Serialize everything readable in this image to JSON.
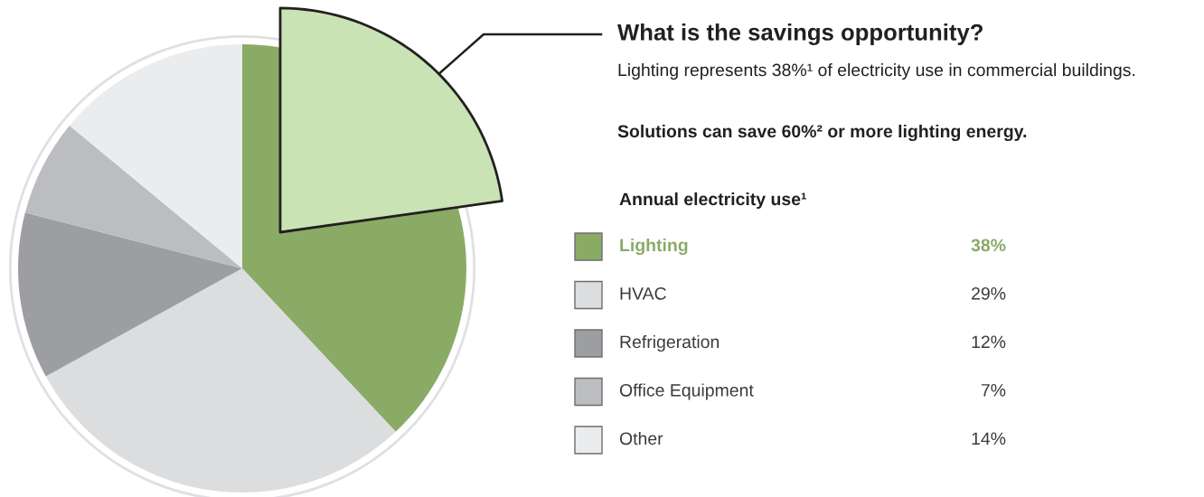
{
  "chart_data": {
    "type": "pie",
    "title": "What is the savings opportunity?",
    "subtitle": "Lighting represents 38%¹ of electricity use in commercial buildings.",
    "annotations": [
      "Solutions can save 60%² or more lighting energy."
    ],
    "legend_title": "Annual electricity use¹",
    "legend": "right",
    "categories": [
      "Lighting",
      "HVAC",
      "Refrigeration",
      "Office Equipment",
      "Other"
    ],
    "values": [
      38,
      29,
      12,
      7,
      14
    ],
    "value_labels": [
      "38%",
      "29%",
      "12%",
      "7%",
      "14%"
    ],
    "colors": [
      "#8aab66",
      "#dcdddf",
      "#9d9ea2",
      "#bcbdc1",
      "#ebecee"
    ]
  }
}
